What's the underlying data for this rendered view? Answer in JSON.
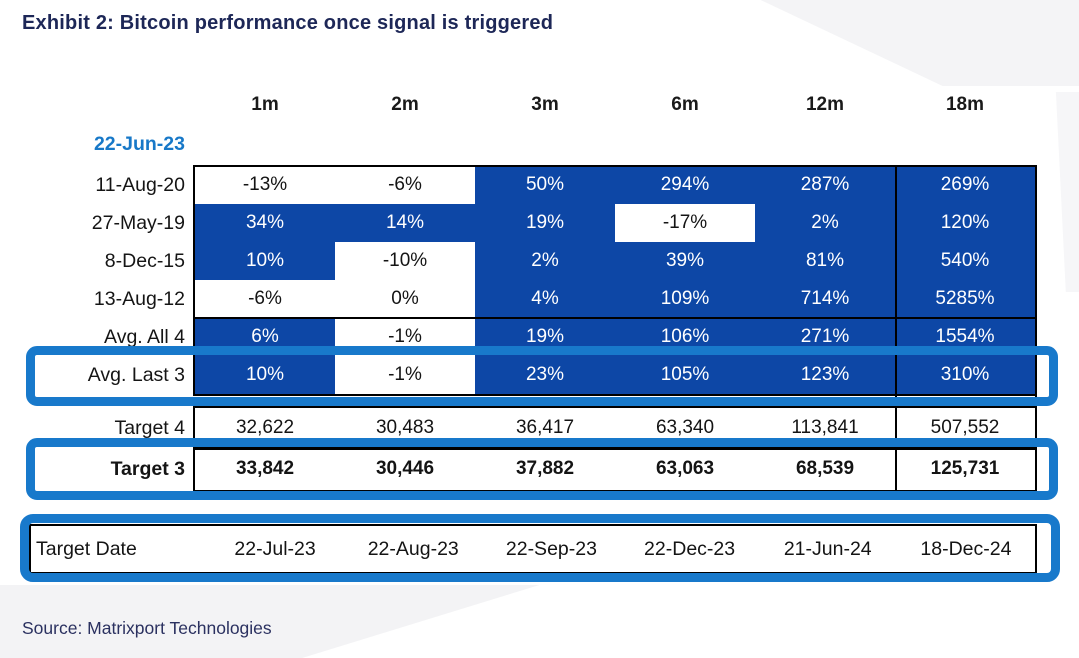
{
  "exhibit_title": "Exhibit 2: Bitcoin performance once signal is triggered",
  "source": "Source: Matrixport Technologies",
  "colors": {
    "table_blue": "#0d47a6",
    "highlight_blue": "#1879cb",
    "title_navy": "#1d2757",
    "signal_blue": "#1778c8"
  },
  "table": {
    "columns": [
      "1m",
      "2m",
      "3m",
      "6m",
      "12m",
      "18m"
    ],
    "signal_date": "22-Jun-23",
    "rows": [
      {
        "label": "11-Aug-20",
        "kind": "signal-event",
        "values": [
          "-13%",
          "-6%",
          "50%",
          "294%",
          "287%",
          "269%"
        ],
        "filled": [
          false,
          false,
          true,
          true,
          true,
          true
        ]
      },
      {
        "label": "27-May-19",
        "kind": "signal-event",
        "values": [
          "34%",
          "14%",
          "19%",
          "-17%",
          "2%",
          "120%"
        ],
        "filled": [
          true,
          true,
          true,
          false,
          true,
          true
        ]
      },
      {
        "label": "8-Dec-15",
        "kind": "signal-event",
        "values": [
          "10%",
          "-10%",
          "2%",
          "39%",
          "81%",
          "540%"
        ],
        "filled": [
          true,
          false,
          true,
          true,
          true,
          true
        ]
      },
      {
        "label": "13-Aug-12",
        "kind": "signal-event",
        "values": [
          "-6%",
          "0%",
          "4%",
          "109%",
          "714%",
          "5285%"
        ],
        "filled": [
          false,
          false,
          true,
          true,
          true,
          true
        ]
      },
      {
        "label": "Avg. All 4",
        "kind": "average",
        "values": [
          "6%",
          "-1%",
          "19%",
          "106%",
          "271%",
          "1554%"
        ],
        "filled": [
          true,
          false,
          true,
          true,
          true,
          true
        ]
      },
      {
        "label": "Avg. Last 3",
        "kind": "average",
        "highlighted": true,
        "values": [
          "10%",
          "-1%",
          "23%",
          "105%",
          "123%",
          "310%"
        ],
        "filled": [
          true,
          false,
          true,
          true,
          true,
          true
        ]
      },
      {
        "label": "Target 4",
        "kind": "target",
        "values": [
          "32,622",
          "30,483",
          "36,417",
          "63,340",
          "113,841",
          "507,552"
        ],
        "filled": [
          false,
          false,
          false,
          false,
          false,
          false
        ]
      },
      {
        "label": "Target 3",
        "kind": "target",
        "highlighted": true,
        "bold": true,
        "values": [
          "33,842",
          "30,446",
          "37,882",
          "63,063",
          "68,539",
          "125,731"
        ],
        "filled": [
          false,
          false,
          false,
          false,
          false,
          false
        ]
      }
    ],
    "target_date_row": {
      "label": "Target Date",
      "highlighted": true,
      "values": [
        "22-Jul-23",
        "22-Aug-23",
        "22-Sep-23",
        "22-Dec-23",
        "21-Jun-24",
        "18-Dec-24"
      ]
    }
  }
}
